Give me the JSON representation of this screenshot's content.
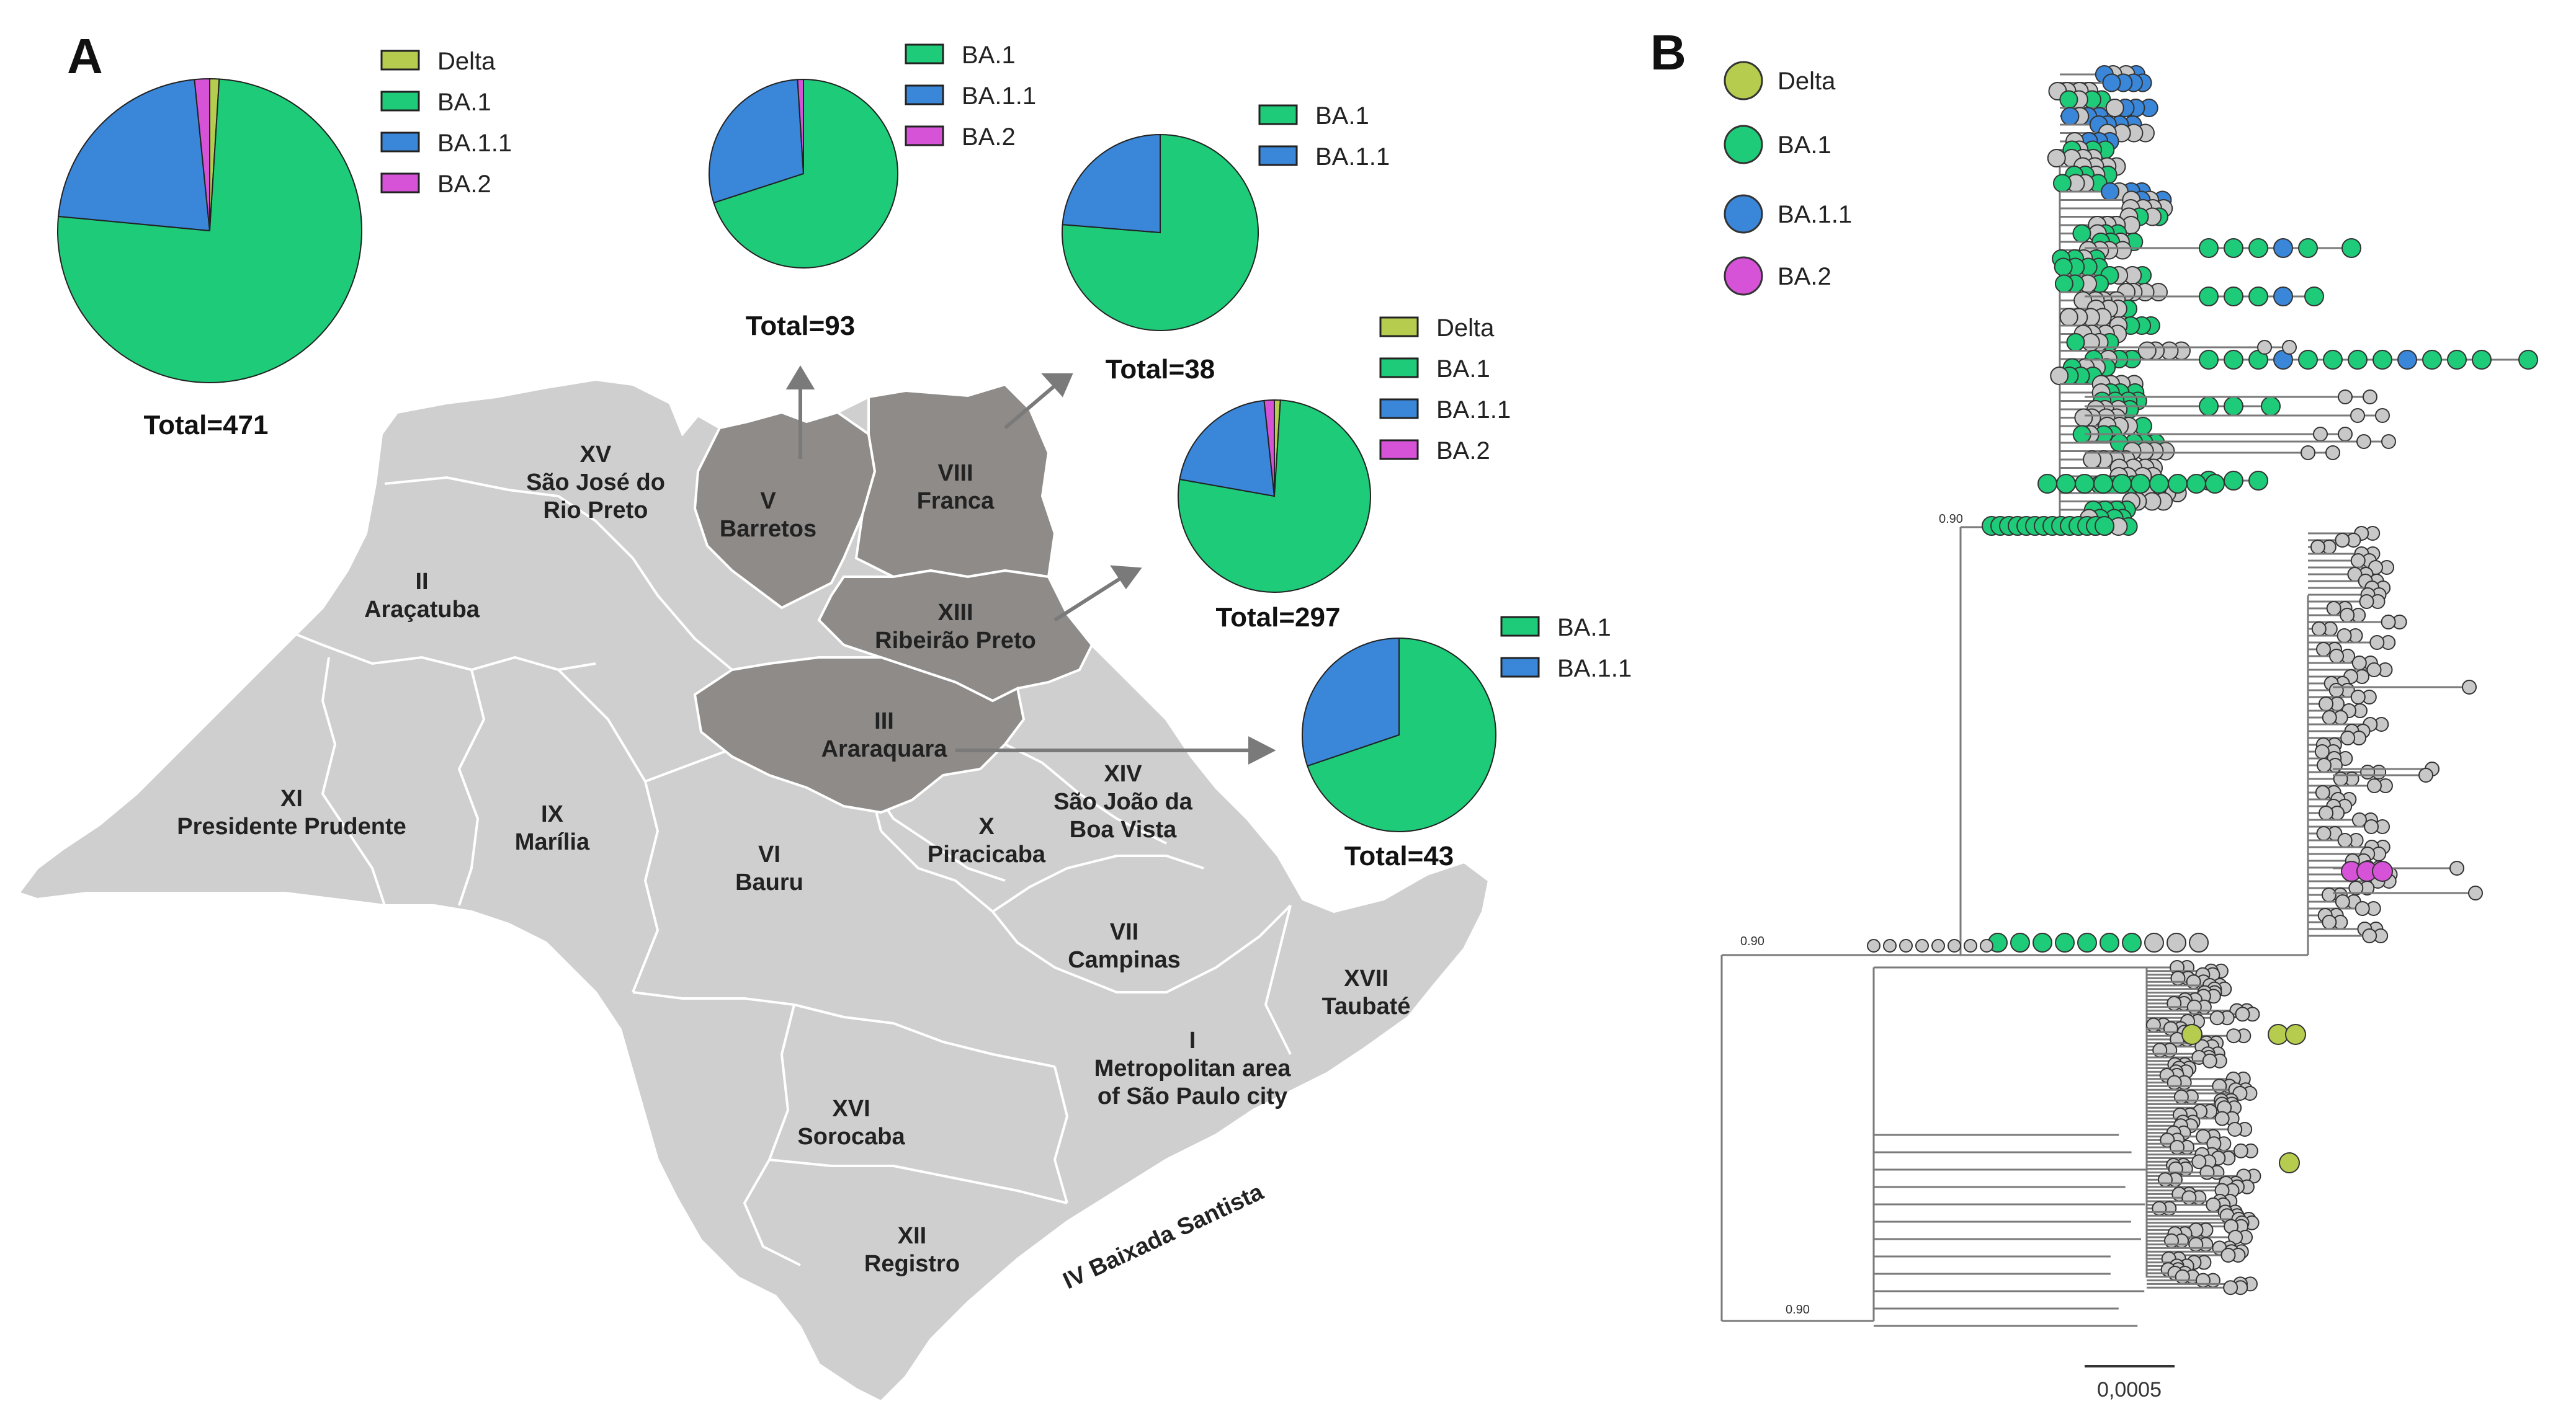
{
  "panels": {
    "a": "A",
    "b": "B"
  },
  "colors": {
    "Delta": "#b5cc4e",
    "BA.1": "#1ecb78",
    "BA.1.1": "#3a86d8",
    "BA.2": "#d653d8",
    "map_light": "#cfcfcf",
    "map_dark": "#8e8b89",
    "tree_gray": "#c8c8c8"
  },
  "chart_data": [
    {
      "type": "pie",
      "title": "Total=471",
      "labels": [
        "Delta",
        "BA.1",
        "BA.1.1",
        "BA.2"
      ],
      "values": [
        1.0,
        75.5,
        21.9,
        1.6
      ],
      "legend": [
        "Delta",
        "BA.1",
        "BA.1.1",
        "BA.2"
      ]
    },
    {
      "type": "pie",
      "title": "Total=93",
      "labels": [
        "BA.1",
        "BA.1.1",
        "BA.2"
      ],
      "values": [
        70.0,
        29.0,
        1.0
      ],
      "legend": [
        "BA.1",
        "BA.1.1",
        "BA.2"
      ]
    },
    {
      "type": "pie",
      "title": "Total=38",
      "labels": [
        "BA.1",
        "BA.1.1"
      ],
      "values": [
        76.3,
        23.7
      ],
      "legend": [
        "BA.1",
        "BA.1.1"
      ]
    },
    {
      "type": "pie",
      "title": "Total=297",
      "labels": [
        "Delta",
        "BA.1",
        "BA.1.1",
        "BA.2"
      ],
      "values": [
        1.0,
        76.8,
        20.5,
        1.7
      ],
      "legend": [
        "Delta",
        "BA.1",
        "BA.1.1",
        "BA.2"
      ]
    },
    {
      "type": "pie",
      "title": "Total=43",
      "labels": [
        "BA.1",
        "BA.1.1"
      ],
      "values": [
        69.8,
        30.2
      ],
      "legend": [
        "BA.1",
        "BA.1.1"
      ]
    }
  ],
  "map": {
    "regions": [
      {
        "id": "XV",
        "num": "XV",
        "name": [
          "São José do",
          "Rio Preto"
        ],
        "highlight": false
      },
      {
        "id": "V",
        "num": "V",
        "name": [
          "Barretos"
        ],
        "highlight": true
      },
      {
        "id": "VIII",
        "num": "VIII",
        "name": [
          "Franca"
        ],
        "highlight": true
      },
      {
        "id": "II",
        "num": "II",
        "name": [
          "Araçatuba"
        ],
        "highlight": false
      },
      {
        "id": "XIII",
        "num": "XIII",
        "name": [
          "Ribeirão Preto"
        ],
        "highlight": true
      },
      {
        "id": "III",
        "num": "III",
        "name": [
          "Araraquara"
        ],
        "highlight": true
      },
      {
        "id": "XI",
        "num": "XI",
        "name": [
          "Presidente Prudente"
        ],
        "highlight": false
      },
      {
        "id": "IX",
        "num": "IX",
        "name": [
          "Marília"
        ],
        "highlight": false
      },
      {
        "id": "VI",
        "num": "VI",
        "name": [
          "Bauru"
        ],
        "highlight": false
      },
      {
        "id": "X",
        "num": "X",
        "name": [
          "Piracicaba"
        ],
        "highlight": false
      },
      {
        "id": "XIV",
        "num": "XIV",
        "name": [
          "São João da",
          "Boa Vista"
        ],
        "highlight": false
      },
      {
        "id": "VII",
        "num": "VII",
        "name": [
          "Campinas"
        ],
        "highlight": false
      },
      {
        "id": "XVII",
        "num": "XVII",
        "name": [
          "Taubaté"
        ],
        "highlight": false
      },
      {
        "id": "I",
        "num": "I",
        "name": [
          "Metropolitan area",
          "of São Paulo city"
        ],
        "highlight": false
      },
      {
        "id": "XVI",
        "num": "XVI",
        "name": [
          "Sorocaba"
        ],
        "highlight": false
      },
      {
        "id": "XII",
        "num": "XII",
        "name": [
          "Registro"
        ],
        "highlight": false
      }
    ],
    "baixada_label": "IV Baixada Santista"
  },
  "tree": {
    "legend": [
      "Delta",
      "BA.1",
      "BA.1.1",
      "BA.2"
    ],
    "support_values": [
      "0.90",
      "0.90",
      "0.90"
    ],
    "scale_label": "0,0005"
  }
}
